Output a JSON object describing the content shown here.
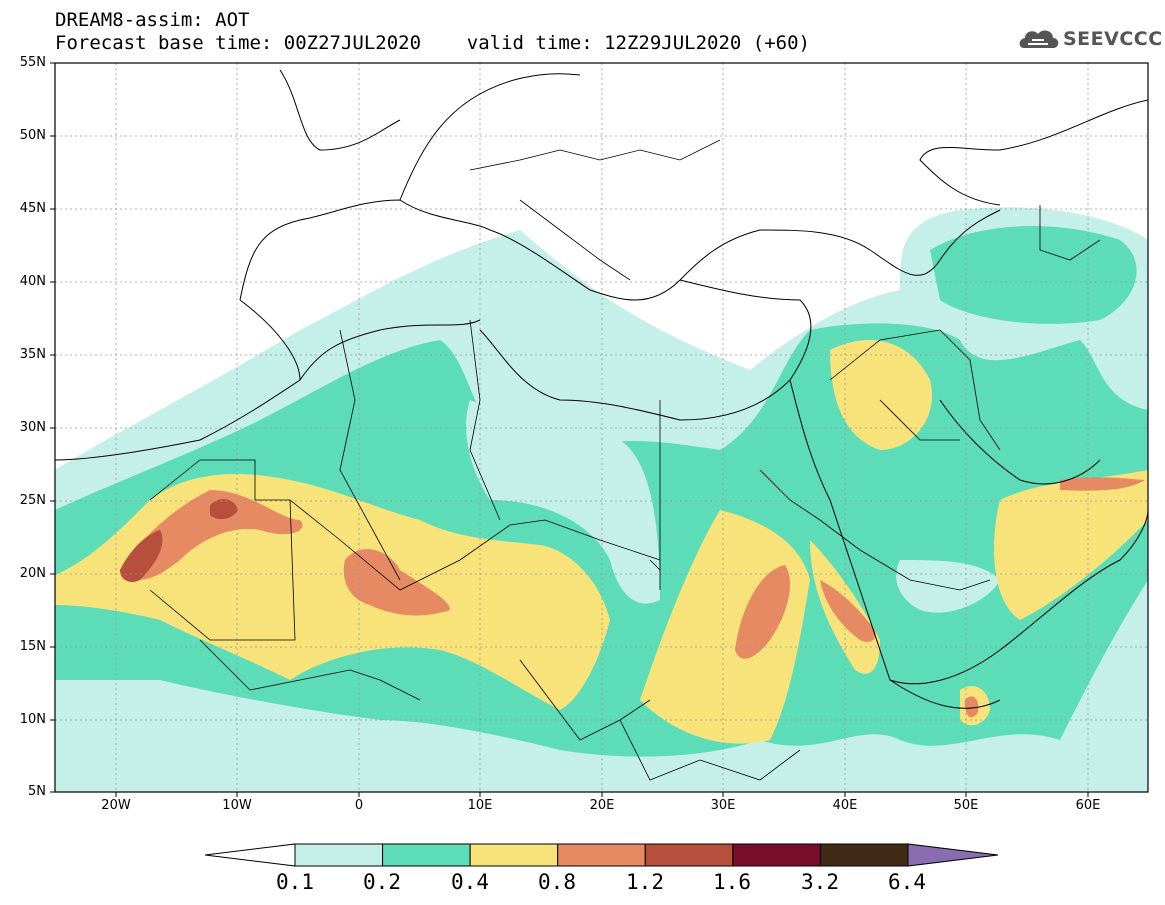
{
  "header": {
    "line1": "DREAM8-assim: AOT",
    "line2": "Forecast base time: 00Z27JUL2020    valid time: 12Z29JUL2020 (+60)",
    "logo_text": "SEEVCCC"
  },
  "map": {
    "lon_range": [
      -25,
      65
    ],
    "lat_range": [
      5,
      55
    ],
    "lat_ticks": [
      "55N",
      "50N",
      "45N",
      "40N",
      "35N",
      "30N",
      "25N",
      "20N",
      "15N",
      "10N",
      "5N"
    ],
    "lon_ticks": [
      "20W",
      "10W",
      "0",
      "10E",
      "20E",
      "30E",
      "40E",
      "50E",
      "60E"
    ],
    "gridlines": true
  },
  "legend": {
    "levels": [
      "0.1",
      "0.2",
      "0.4",
      "0.8",
      "1.2",
      "1.6",
      "3.2",
      "6.4"
    ],
    "colors": [
      "#c5efe9",
      "#5ddcb8",
      "#f7e37a",
      "#e68a63",
      "#b64f3c",
      "#780e2b",
      "#402a16"
    ],
    "extend_max_color": "#8a6cb0"
  },
  "colors": {
    "water": "#ffffff",
    "land_border": "#000000",
    "aot_0_1": "#c5efe9",
    "aot_0_2": "#5ddcb8",
    "aot_0_4": "#f7e37a",
    "aot_0_8": "#e68a63",
    "aot_1_2": "#b64f3c",
    "aot_1_6": "#780e2b"
  }
}
